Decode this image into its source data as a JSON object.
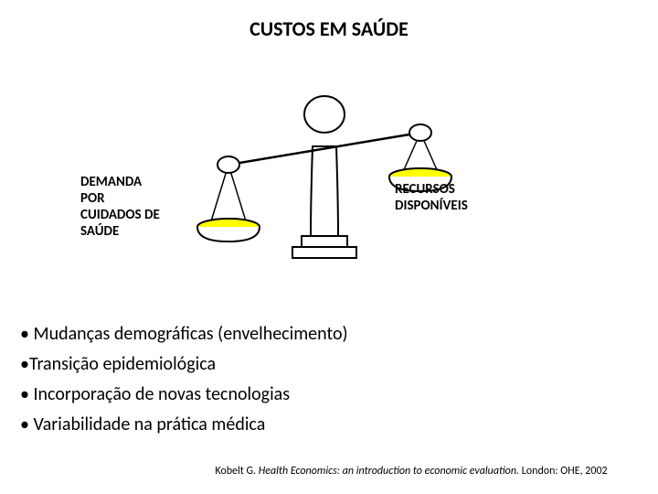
{
  "title": "CUSTOS EM SAÚDE",
  "scale": {
    "type": "infographic",
    "colors": {
      "stroke": "#000000",
      "fill_white": "#ffffff",
      "fill_pan": "#ffff00",
      "stroke_width": 2
    },
    "left_label": "DEMANDA\nPOR\nCUIDADOS DE\nSAÚDE",
    "right_label": "RECURSOS\nDISPONÍVEIS",
    "tilt": "left-down"
  },
  "bullets": [
    "• Mudanças demográficas (envelhecimento)",
    "•Transição epidemiológica",
    "• Incorporação de novas tecnologias",
    "• Variabilidade na prática médica"
  ],
  "citation": {
    "author": "Kobelt G.",
    "title_italic": "Health Economics: an introduction to economic evaluation.",
    "rest": " London: OHE, 2002"
  },
  "styling": {
    "background_color": "#ffffff",
    "title_fontsize": 22,
    "label_fontsize": 15,
    "bullet_fontsize": 20,
    "citation_fontsize": 12,
    "font_family": "Calibri, Arial, sans-serif"
  }
}
